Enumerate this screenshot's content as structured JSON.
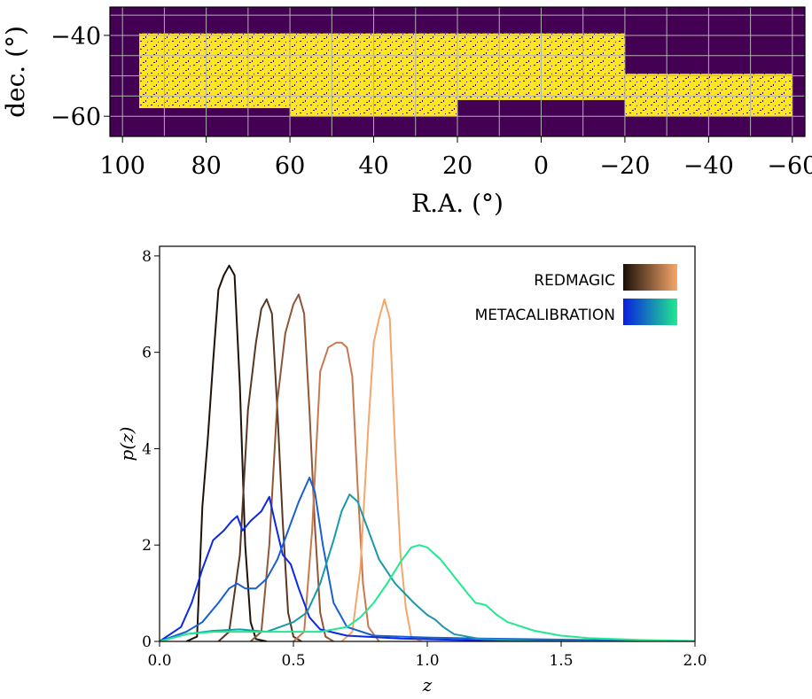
{
  "chart_data": [
    {
      "type": "heatmap",
      "title": "",
      "xlabel": "R.A. (°)",
      "ylabel": "dec. (°)",
      "xlim": [
        103,
        -63
      ],
      "ylim": [
        -65,
        -33
      ],
      "x_ticks": [
        100,
        80,
        60,
        40,
        20,
        0,
        -20,
        -40,
        -60
      ],
      "x_tick_labels": [
        "100",
        "80",
        "60",
        "40",
        "20",
        "0",
        "−20",
        "−40",
        "−60"
      ],
      "y_ticks": [
        -40,
        -60
      ],
      "y_tick_labels": [
        "−40",
        "−60"
      ],
      "grid": true,
      "colormap": "viridis",
      "colors": {
        "background": "#440154",
        "filled": "#fde725",
        "grid": "#b0b0b0"
      },
      "footprint_regions": [
        {
          "ra": [
            96,
            60
          ],
          "dec": [
            -39.5,
            -58
          ]
        },
        {
          "ra": [
            60,
            20
          ],
          "dec": [
            -39.5,
            -60
          ]
        },
        {
          "ra": [
            20,
            -20
          ],
          "dec": [
            -39.5,
            -56
          ]
        },
        {
          "ra": [
            -20,
            -30
          ],
          "dec": [
            -49.5,
            -60
          ]
        },
        {
          "ra": [
            -30,
            -60
          ],
          "dec": [
            -49.5,
            -60
          ]
        }
      ]
    },
    {
      "type": "line",
      "title": "",
      "xlabel": "z",
      "ylabel": "p(z)",
      "xlim": [
        0.0,
        2.0
      ],
      "ylim": [
        0,
        8.2
      ],
      "x_ticks": [
        0.0,
        0.5,
        1.0,
        1.5,
        2.0
      ],
      "x_tick_labels": [
        "0.0",
        "0.5",
        "1.0",
        "1.5",
        "2.0"
      ],
      "y_ticks": [
        0,
        2,
        4,
        6,
        8
      ],
      "y_tick_labels": [
        "0",
        "2",
        "4",
        "6",
        "8"
      ],
      "grid": false,
      "legend_position": "top-right",
      "legend": [
        {
          "label": "REDMAGIC",
          "gradient": [
            "#1a0f08",
            "#f5a86b"
          ]
        },
        {
          "label": "METACALIBRATION",
          "gradient": [
            "#0a1ee0",
            "#22e890"
          ]
        }
      ],
      "series": [
        {
          "group": "redMaGiC",
          "color": "#1c120a",
          "x": [
            0.1,
            0.14,
            0.16,
            0.18,
            0.2,
            0.22,
            0.24,
            0.26,
            0.28,
            0.3,
            0.32,
            0.34,
            0.36,
            0.4
          ],
          "y": [
            0.0,
            0.1,
            2.8,
            4.2,
            5.8,
            7.3,
            7.6,
            7.8,
            7.6,
            5.3,
            2.0,
            0.4,
            0.05,
            0.0
          ]
        },
        {
          "group": "redMaGiC",
          "color": "#5a3623",
          "x": [
            0.22,
            0.26,
            0.3,
            0.33,
            0.36,
            0.38,
            0.4,
            0.42,
            0.44,
            0.46,
            0.48,
            0.5,
            0.53
          ],
          "y": [
            0.0,
            0.2,
            1.8,
            4.8,
            6.2,
            6.9,
            7.1,
            6.8,
            4.8,
            2.5,
            0.6,
            0.1,
            0.0
          ]
        },
        {
          "group": "redMaGiC",
          "color": "#905638",
          "x": [
            0.34,
            0.38,
            0.41,
            0.44,
            0.47,
            0.5,
            0.52,
            0.54,
            0.56,
            0.58,
            0.6,
            0.62,
            0.65
          ],
          "y": [
            0.0,
            0.2,
            2.0,
            5.0,
            6.4,
            7.0,
            7.2,
            6.8,
            4.8,
            2.4,
            0.6,
            0.1,
            0.0
          ]
        },
        {
          "group": "redMaGiC",
          "color": "#c8784e",
          "x": [
            0.5,
            0.54,
            0.57,
            0.6,
            0.63,
            0.66,
            0.68,
            0.7,
            0.72,
            0.74,
            0.76,
            0.78,
            0.82
          ],
          "y": [
            0.0,
            0.2,
            2.3,
            5.6,
            6.1,
            6.2,
            6.2,
            6.1,
            5.5,
            3.2,
            1.2,
            0.3,
            0.0
          ]
        },
        {
          "group": "redMaGiC",
          "color": "#f4a66b",
          "x": [
            0.68,
            0.72,
            0.75,
            0.78,
            0.8,
            0.82,
            0.84,
            0.86,
            0.88,
            0.9,
            0.92,
            0.94,
            0.98
          ],
          "y": [
            0.0,
            0.2,
            1.5,
            4.5,
            6.2,
            6.7,
            7.1,
            6.7,
            4.0,
            1.8,
            0.7,
            0.1,
            0.0
          ]
        },
        {
          "group": "Metacalibration",
          "color": "#0d28e6",
          "x": [
            0.0,
            0.08,
            0.12,
            0.16,
            0.2,
            0.24,
            0.27,
            0.29,
            0.31,
            0.34,
            0.38,
            0.41,
            0.43,
            0.46,
            0.49,
            0.52,
            0.56,
            0.6,
            0.7,
            0.9,
            1.2,
            2.0
          ],
          "y": [
            0.0,
            0.3,
            0.8,
            1.5,
            2.1,
            2.3,
            2.5,
            2.6,
            2.3,
            2.5,
            2.7,
            3.0,
            2.5,
            1.8,
            1.6,
            1.1,
            0.5,
            0.25,
            0.12,
            0.06,
            0.02,
            0.0
          ]
        },
        {
          "group": "Metacalibration",
          "color": "#1a5fd0",
          "x": [
            0.0,
            0.1,
            0.16,
            0.22,
            0.26,
            0.29,
            0.32,
            0.36,
            0.4,
            0.44,
            0.48,
            0.52,
            0.56,
            0.58,
            0.61,
            0.65,
            0.7,
            0.8,
            1.0,
            1.2,
            2.0
          ],
          "y": [
            0.0,
            0.2,
            0.4,
            0.8,
            1.1,
            1.2,
            1.1,
            1.1,
            1.3,
            1.7,
            2.3,
            2.9,
            3.4,
            3.1,
            2.0,
            0.8,
            0.3,
            0.12,
            0.08,
            0.06,
            0.0
          ]
        },
        {
          "group": "Metacalibration",
          "color": "#1a9aa8",
          "x": [
            0.0,
            0.1,
            0.2,
            0.3,
            0.4,
            0.45,
            0.5,
            0.55,
            0.6,
            0.65,
            0.68,
            0.71,
            0.74,
            0.78,
            0.82,
            0.88,
            0.95,
            1.0,
            1.03,
            1.06,
            1.1,
            1.2,
            1.4,
            2.0
          ],
          "y": [
            0.0,
            0.15,
            0.22,
            0.25,
            0.2,
            0.3,
            0.4,
            0.6,
            1.2,
            2.1,
            2.7,
            3.05,
            2.9,
            2.3,
            1.7,
            1.2,
            0.8,
            0.55,
            0.45,
            0.3,
            0.15,
            0.05,
            0.01,
            0.0
          ]
        },
        {
          "group": "Metacalibration",
          "color": "#22e890",
          "x": [
            0.0,
            0.1,
            0.2,
            0.3,
            0.4,
            0.5,
            0.6,
            0.65,
            0.7,
            0.75,
            0.8,
            0.85,
            0.9,
            0.94,
            0.97,
            1.0,
            1.05,
            1.1,
            1.15,
            1.18,
            1.2,
            1.22,
            1.26,
            1.3,
            1.4,
            1.5,
            1.6,
            1.8,
            2.0
          ],
          "y": [
            0.0,
            0.15,
            0.2,
            0.2,
            0.2,
            0.2,
            0.2,
            0.25,
            0.3,
            0.5,
            0.8,
            1.2,
            1.65,
            1.95,
            2.0,
            1.95,
            1.7,
            1.35,
            1.0,
            0.8,
            0.78,
            0.75,
            0.55,
            0.4,
            0.22,
            0.12,
            0.07,
            0.03,
            0.01
          ]
        }
      ]
    }
  ]
}
